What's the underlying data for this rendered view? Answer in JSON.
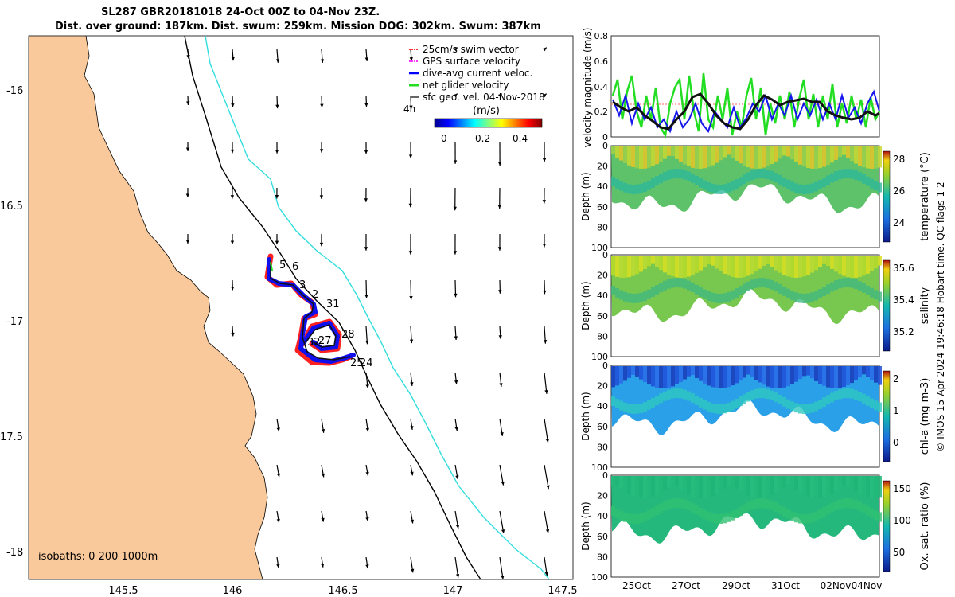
{
  "title": {
    "line1": "SL287 GBR20181018 24-Oct 00Z to 04-Nov 23Z.",
    "line2": "Dist. over ground: 187km. Dist. swum: 259km. Mission DOG: 302km. Swum: 387km"
  },
  "map": {
    "lat_ticks": [
      "-16",
      "16.5",
      "-17",
      "17.5",
      "-18"
    ],
    "lon_ticks": [
      "145.5",
      "146",
      "146.5",
      "147",
      "147.5"
    ],
    "legend": [
      {
        "label": "25cm/s swim vector",
        "color": "#ff3333"
      },
      {
        "label": "GPS surface velocity",
        "color": "#ff33ff"
      },
      {
        "label": "dive-avg current veloc.",
        "color": "#0000ff"
      },
      {
        "label": "net glider velocity",
        "color": "#22dd22"
      },
      {
        "label": "sfc geo. vel. 04-Nov-2018",
        "color": "#000000"
      }
    ],
    "scale_label": "4h",
    "colorbar": {
      "title": "(m/s)",
      "ticks": [
        "0",
        "0.2",
        "0.4"
      ]
    },
    "isobaths_label": "isobaths: 0   200  1000m",
    "day_labels": [
      "5",
      "6",
      "3",
      "2",
      "31",
      "28",
      "32",
      "27",
      "25",
      "24"
    ],
    "colors": {
      "land": "#f9c99b",
      "ocean": "#ffffff",
      "isobath_200": "#000000",
      "isobath_1000": "#33dddd"
    }
  },
  "panels": {
    "velocity": {
      "ylabel": "velocity magnitude (m/s)",
      "yticks": [
        "0.8",
        "0.6",
        "0.4",
        "0.2",
        "0"
      ]
    },
    "temperature": {
      "ylabel": "Depth (m)",
      "cbar_label": "temperature (°C)",
      "cbar_ticks": [
        "28",
        "26",
        "24"
      ],
      "yticks": [
        "0",
        "20",
        "40",
        "60",
        "80",
        "100"
      ]
    },
    "salinity": {
      "ylabel": "Depth (m)",
      "cbar_label": "salinity",
      "cbar_ticks": [
        "35.6",
        "35.4",
        "35.2"
      ],
      "yticks": [
        "0",
        "20",
        "40",
        "60",
        "80",
        "100"
      ]
    },
    "chla": {
      "ylabel": "Depth (m)",
      "cbar_label": "chl-a (mg m-3)",
      "cbar_ticks": [
        "2",
        "1",
        "0"
      ],
      "yticks": [
        "0",
        "20",
        "40",
        "60",
        "80",
        "100"
      ]
    },
    "oxygen": {
      "ylabel": "Depth (m)",
      "cbar_label": "Ox. sat. ratio (%)",
      "cbar_ticks": [
        "150",
        "100",
        "50"
      ],
      "yticks": [
        "0",
        "20",
        "40",
        "60",
        "80",
        "100"
      ]
    },
    "date_ticks": [
      "25Oct",
      "27Oct",
      "29Oct",
      "31Oct",
      "02Nov",
      "04Nov"
    ]
  },
  "side_note": "© IMOS 15-Apr-2024 19:46:18 Hobart time. QC flags 1  2"
}
